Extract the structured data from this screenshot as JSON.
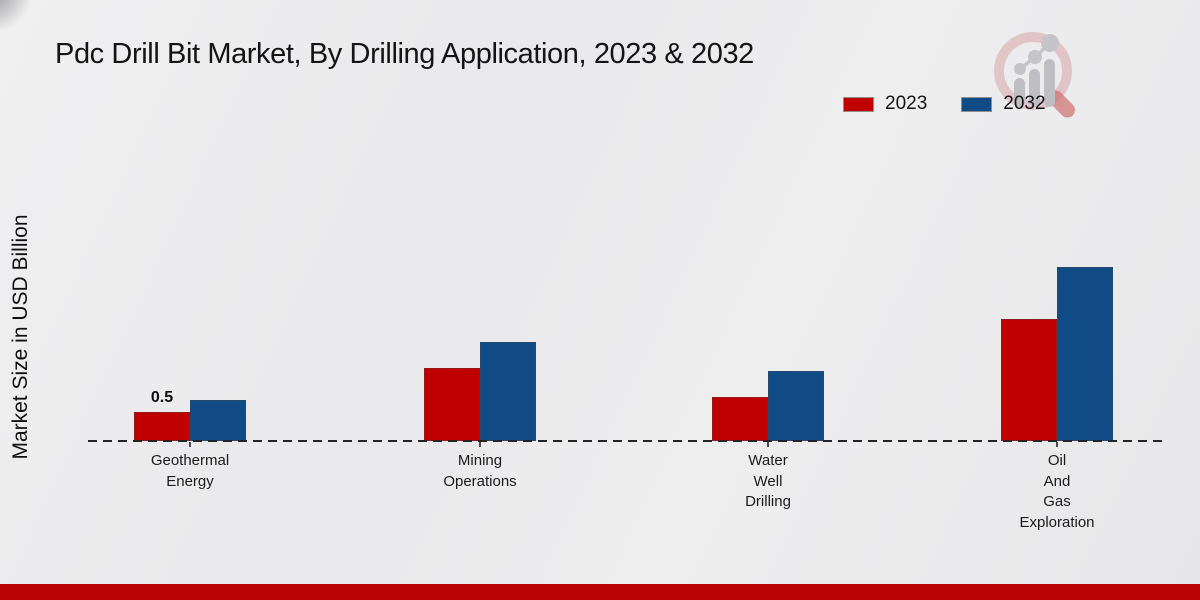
{
  "header": {
    "title": "Pdc Drill Bit Market, By Drilling Application, 2023 & 2032"
  },
  "axes": {
    "y_label": "Market Size in USD Billion"
  },
  "legend": {
    "items": [
      {
        "label": "2023",
        "color": "#c00000"
      },
      {
        "label": "2032",
        "color": "#114b85"
      }
    ]
  },
  "footer": {
    "accent_color": "#b80404"
  },
  "chart_data": {
    "type": "bar",
    "title": "Pdc Drill Bit Market, By Drilling Application, 2023 & 2032",
    "xlabel": "",
    "ylabel": "Market Size in USD Billion",
    "categories": [
      "Geothermal Energy",
      "Mining Operations",
      "Water Well Drilling",
      "Oil And Gas Exploration"
    ],
    "series": [
      {
        "name": "2023",
        "color": "#c00000",
        "values": [
          0.5,
          1.25,
          0.75,
          2.1
        ]
      },
      {
        "name": "2032",
        "color": "#114b85",
        "values": [
          0.7,
          1.7,
          1.2,
          3.0
        ]
      }
    ],
    "data_labels": [
      {
        "series": 0,
        "category": 0,
        "text": "0.5"
      }
    ],
    "ylim": [
      0,
      3.2
    ],
    "grid": false,
    "y_axis_ticks_visible": false,
    "legend_position": "top-right",
    "baseline_style": "dashed"
  }
}
